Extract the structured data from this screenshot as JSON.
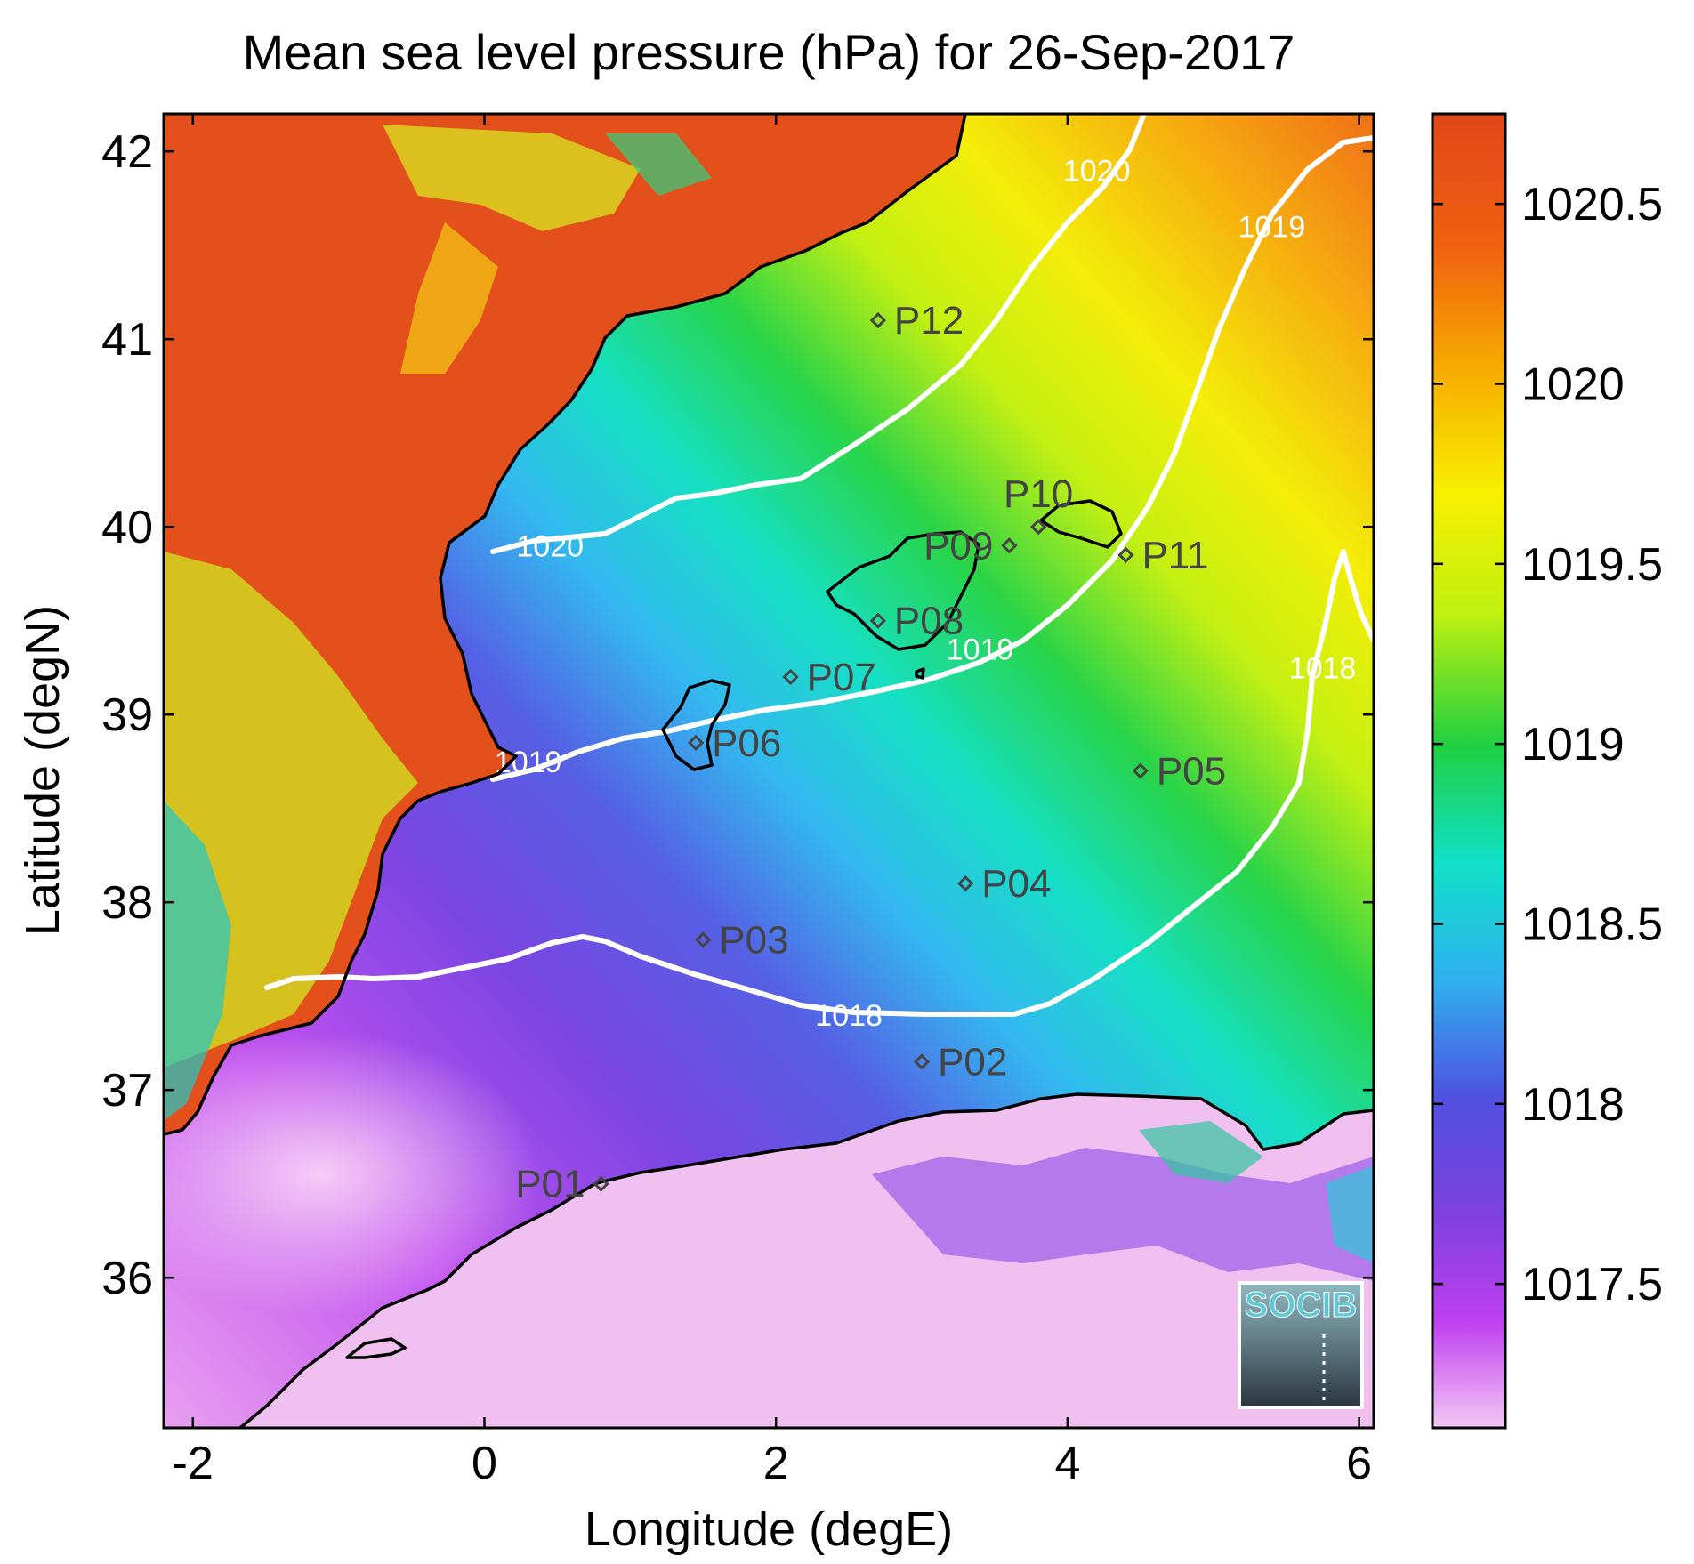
{
  "title": "Mean sea level pressure (hPa) for 26-Sep-2017",
  "x_axis": {
    "label": "Longitude (degE)",
    "ticks": [
      -2,
      0,
      2,
      4,
      6
    ],
    "tick_labels": [
      "-2",
      "0",
      "2",
      "4",
      "6"
    ],
    "range": [
      -2.2,
      6.1
    ]
  },
  "y_axis": {
    "label": "Latitude (degN)",
    "ticks": [
      36,
      37,
      38,
      39,
      40,
      41,
      42
    ],
    "tick_labels": [
      "36",
      "37",
      "38",
      "39",
      "40",
      "41",
      "42"
    ],
    "range": [
      35.2,
      42.2
    ]
  },
  "colorbar": {
    "min": 1017.1,
    "max": 1020.75,
    "ticks": [
      1017.5,
      1018,
      1018.5,
      1019,
      1019.5,
      1020,
      1020.5
    ],
    "tick_labels": [
      "1017.5",
      "1018",
      "1018.5",
      "1019",
      "1019.5",
      "1020",
      "1020.5"
    ],
    "colormap": [
      "#f5c8f5",
      "#c040f0",
      "#8040e0",
      "#5050e0",
      "#30b0f0",
      "#10e0c8",
      "#20d040",
      "#c0f010",
      "#f8f000",
      "#f8b000",
      "#f06010",
      "#e04818"
    ]
  },
  "contours": [
    {
      "label": "1018",
      "label_lon": 2.5,
      "label_lat": 37.4
    },
    {
      "label": "1018",
      "label_lon": 5.75,
      "label_lat": 39.25
    },
    {
      "label": "1019",
      "label_lon": 0.3,
      "label_lat": 38.75
    },
    {
      "label": "1019",
      "label_lon": 3.4,
      "label_lat": 39.35
    },
    {
      "label": "1019",
      "label_lon": 5.4,
      "label_lat": 41.6
    },
    {
      "label": "1020",
      "label_lon": 0.45,
      "label_lat": 39.9
    },
    {
      "label": "1020",
      "label_lon": 4.2,
      "label_lat": 41.9
    }
  ],
  "stations": [
    {
      "id": "P01",
      "lon": 0.8,
      "lat": 36.5,
      "label_side": "left"
    },
    {
      "id": "P02",
      "lon": 3.0,
      "lat": 37.15,
      "label_side": "right"
    },
    {
      "id": "P03",
      "lon": 1.5,
      "lat": 37.8,
      "label_side": "right"
    },
    {
      "id": "P04",
      "lon": 3.3,
      "lat": 38.1,
      "label_side": "right"
    },
    {
      "id": "P05",
      "lon": 4.5,
      "lat": 38.7,
      "label_side": "right"
    },
    {
      "id": "P06",
      "lon": 1.45,
      "lat": 38.85,
      "label_side": "right"
    },
    {
      "id": "P07",
      "lon": 2.1,
      "lat": 39.2,
      "label_side": "right"
    },
    {
      "id": "P08",
      "lon": 2.7,
      "lat": 39.5,
      "label_side": "right"
    },
    {
      "id": "P09",
      "lon": 3.6,
      "lat": 39.9,
      "label_side": "left"
    },
    {
      "id": "P10",
      "lon": 3.8,
      "lat": 40.0,
      "label_side": "above"
    },
    {
      "id": "P11",
      "lon": 4.4,
      "lat": 39.85,
      "label_side": "right"
    },
    {
      "id": "P12",
      "lon": 2.7,
      "lat": 41.1,
      "label_side": "right"
    }
  ],
  "logo": {
    "text": "SOCIB"
  }
}
